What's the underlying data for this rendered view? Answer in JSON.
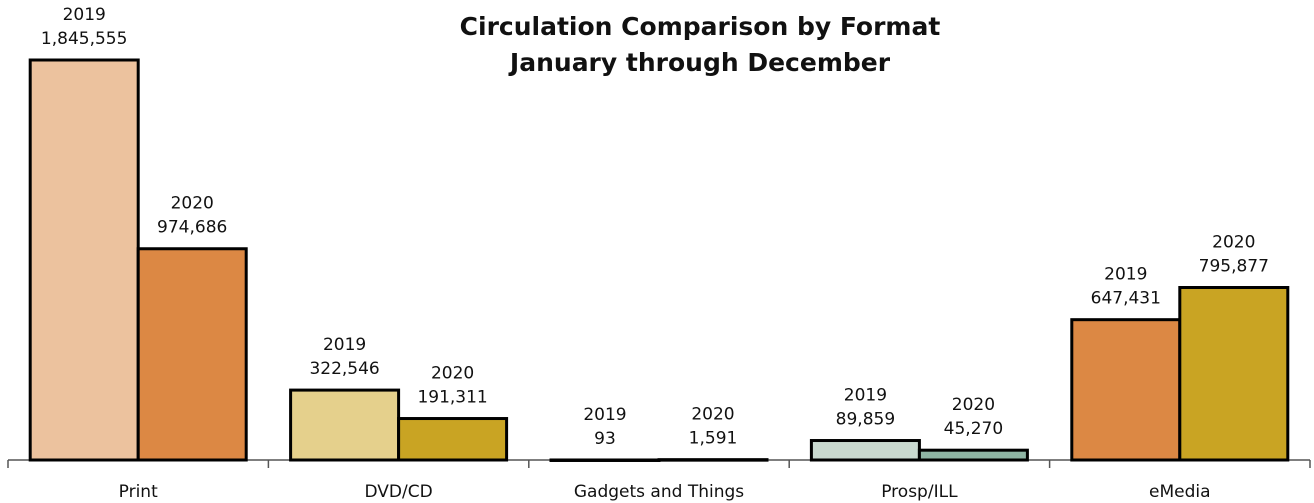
{
  "chart_data": {
    "type": "bar",
    "title": "Circulation Comparison by Format",
    "subtitle": "January through December",
    "categories": [
      "Print",
      "DVD/CD",
      "Gadgets and Things",
      "Prosp/ILL",
      "eMedia"
    ],
    "series": [
      {
        "name": "2019",
        "colors": [
          "#ecc29e",
          "#e5d08c",
          "#c9c3a6",
          "#c9d9cf",
          "#dc8844"
        ],
        "values": [
          1845555,
          322546,
          93,
          89859,
          647431
        ],
        "value_labels": [
          "1,845,555",
          "322,546",
          "93",
          "89,859",
          "647,431"
        ]
      },
      {
        "name": "2020",
        "colors": [
          "#dc8844",
          "#c9a423",
          "#a89a60",
          "#8fb5a4",
          "#c9a423"
        ],
        "values": [
          974686,
          191311,
          1591,
          45270,
          795877
        ],
        "value_labels": [
          "974,686",
          "191,311",
          "1,591",
          "45,270",
          "795,877"
        ]
      }
    ]
  }
}
